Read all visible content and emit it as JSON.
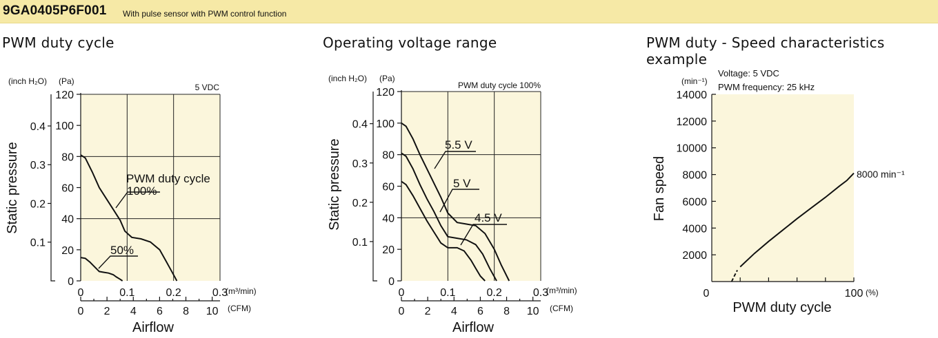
{
  "header": {
    "model": "9GA0405P6F001",
    "description": "With pulse sensor with PWM control function"
  },
  "chart_data": [
    {
      "type": "line",
      "title": "PWM duty cycle",
      "note": "5 VDC",
      "xlabel": "Airflow",
      "ylabel": "Static pressure",
      "x_unit_primary": "(m³/min)",
      "x_unit_secondary": "(CFM)",
      "y_unit_primary": "(Pa)",
      "y_unit_secondary": "(inch H₂O)",
      "xlim": [
        0,
        0.3
      ],
      "ylim": [
        0,
        120
      ],
      "x_ticks": [
        "0",
        "0.1",
        "0.2",
        "0.3"
      ],
      "x_ticks_secondary": [
        "0",
        "2",
        "4",
        "6",
        "8",
        "10"
      ],
      "y_ticks": [
        "0",
        "20",
        "40",
        "60",
        "80",
        "100",
        "120"
      ],
      "y_ticks_secondary": [
        "0.1",
        "0.2",
        "0.3",
        "0.4"
      ],
      "labels": {
        "pwm_line1": "PWM duty cycle",
        "pwm_line2": "100%",
        "pwm_50": "50%"
      },
      "series": [
        {
          "x": [
            0,
            0.01,
            0.025,
            0.04,
            0.055,
            0.07,
            0.085,
            0.095,
            0.11,
            0.13,
            0.15,
            0.17,
            0.185,
            0.198,
            0.207
          ],
          "y": [
            81,
            79,
            70,
            60,
            53,
            46,
            39,
            32,
            28,
            27,
            25,
            20,
            12,
            5,
            0
          ]
        },
        {
          "x": [
            0,
            0.01,
            0.02,
            0.03,
            0.04,
            0.05,
            0.06,
            0.07,
            0.077,
            0.085,
            0.09
          ],
          "y": [
            15,
            14.5,
            12,
            9,
            6,
            5.5,
            5,
            4,
            2.5,
            1,
            0
          ]
        }
      ]
    },
    {
      "type": "line",
      "title": "Operating voltage range",
      "note": "PWM duty cycle 100%",
      "xlabel": "Airflow",
      "ylabel": "Static pressure",
      "x_unit_primary": "(m³/min)",
      "x_unit_secondary": "(CFM)",
      "y_unit_primary": "(Pa)",
      "y_unit_secondary": "(inch H₂O)",
      "xlim": [
        0,
        0.3
      ],
      "ylim": [
        0,
        120
      ],
      "x_ticks": [
        "0",
        "0.1",
        "0.2",
        "0.3"
      ],
      "x_ticks_secondary": [
        "0",
        "2",
        "4",
        "6",
        "8",
        "10"
      ],
      "y_ticks": [
        "0",
        "20",
        "40",
        "60",
        "80",
        "100",
        "120"
      ],
      "y_ticks_secondary": [
        "0.1",
        "0.2",
        "0.3",
        "0.4"
      ],
      "series": [
        {
          "name": "5.5 V",
          "x": [
            0,
            0.01,
            0.025,
            0.04,
            0.055,
            0.07,
            0.085,
            0.1,
            0.12,
            0.14,
            0.16,
            0.18,
            0.2,
            0.215,
            0.232
          ],
          "y": [
            100,
            98,
            90,
            80,
            71,
            62,
            53,
            43,
            37,
            36,
            35,
            30,
            20,
            10,
            0
          ]
        },
        {
          "name": "5 V",
          "x": [
            0,
            0.01,
            0.025,
            0.04,
            0.055,
            0.07,
            0.085,
            0.1,
            0.12,
            0.14,
            0.16,
            0.175,
            0.19,
            0.205
          ],
          "y": [
            81,
            79,
            71,
            61,
            52,
            44,
            35,
            28,
            27,
            26,
            23,
            17,
            8,
            0
          ]
        },
        {
          "name": "4.5 V",
          "x": [
            0,
            0.01,
            0.025,
            0.04,
            0.055,
            0.07,
            0.085,
            0.1,
            0.12,
            0.135,
            0.15,
            0.16,
            0.17,
            0.18
          ],
          "y": [
            63,
            61,
            54,
            46,
            38,
            31,
            24,
            21,
            21,
            19,
            13,
            8,
            3,
            0
          ]
        }
      ]
    },
    {
      "type": "line",
      "title": "PWM duty - Speed characteristics example",
      "note_lines": [
        "Voltage: 5 VDC",
        "PWM frequency: 25 kHz"
      ],
      "xlabel": "PWM duty cycle",
      "ylabel": "Fan speed",
      "x_unit": "(%)",
      "y_unit": "(min⁻¹)",
      "xlim": [
        0,
        100
      ],
      "ylim": [
        0,
        14000
      ],
      "x_ticks": [
        "0",
        "100"
      ],
      "y_ticks": [
        "2000",
        "4000",
        "6000",
        "8000",
        "10000",
        "12000",
        "14000"
      ],
      "annotation": "8000 min⁻¹",
      "series": [
        {
          "style": "dashed",
          "x": [
            14,
            16,
            18
          ],
          "y": [
            0,
            450,
            850
          ]
        },
        {
          "style": "solid",
          "x": [
            20,
            30,
            40,
            50,
            60,
            70,
            80,
            90,
            95,
            100
          ],
          "y": [
            1100,
            2100,
            3000,
            3850,
            4700,
            5500,
            6300,
            7150,
            7550,
            8100
          ]
        }
      ]
    }
  ]
}
